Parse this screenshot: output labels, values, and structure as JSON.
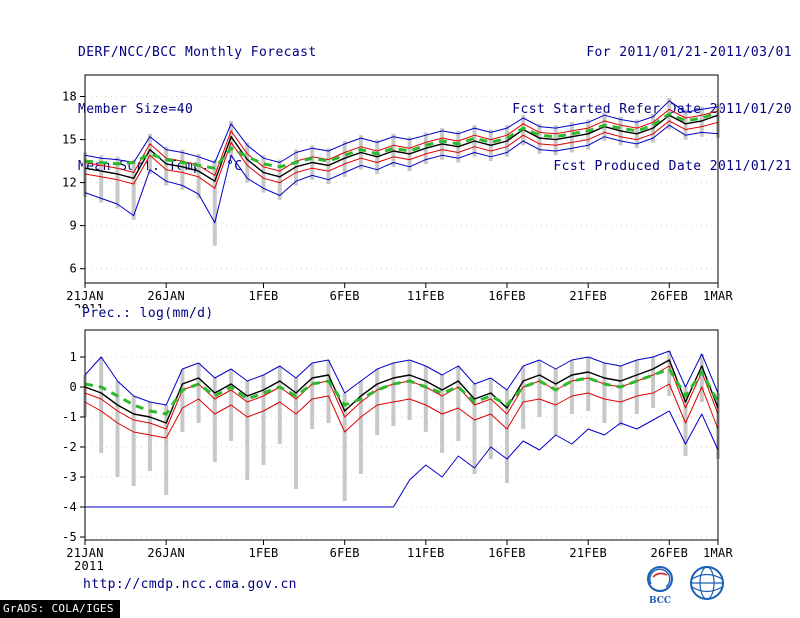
{
  "header": {
    "title": "DERF/NCC/BCC Monthly Forecast",
    "member_size": "Member Size=40",
    "for_range": "For 2011/01/21-2011/03/01",
    "fcst_started": "Fcst Started Refer Date 2011/01/20",
    "fcst_produced": "Fcst Produced Date 2011/01/21"
  },
  "footer": {
    "url": "http://cmdp.ncc.cma.gov.cn",
    "grads_credit": "GrADS: COLA/IGES",
    "bcc_caption": "BCC"
  },
  "colors": {
    "text_navy": "#000080",
    "axis_black": "#000000",
    "ensemble_bar_gray": "#c8c8c8",
    "minmax_blue": "#0000c8",
    "quartile_red": "#e00000",
    "mean_black": "#000000",
    "climatology_green": "#2eb82e"
  },
  "chart_data": [
    {
      "type": "line",
      "title": "Mean Surf. Temp.: °C",
      "xlabel": "",
      "ylabel": "°C",
      "x_tick_labels": [
        "21JAN",
        "26JAN",
        "1FEB",
        "6FEB",
        "11FEB",
        "16FEB",
        "21FEB",
        "26FEB",
        "1MAR"
      ],
      "x_tick_days": [
        0,
        5,
        11,
        16,
        21,
        26,
        31,
        36,
        39
      ],
      "x_sub_label": "2011",
      "n_days": 40,
      "ylim": [
        5,
        19.5
      ],
      "yticks": [
        6,
        9,
        12,
        15,
        18
      ],
      "grid": "dotted-horizontal",
      "legend": "none",
      "bars": {
        "name": "ensemble-spread",
        "color": "#c8c8c8",
        "low": [
          11.0,
          10.6,
          10.2,
          9.4,
          12.6,
          11.8,
          11.5,
          10.9,
          7.6,
          13.6,
          12.0,
          11.3,
          10.8,
          11.8,
          12.2,
          11.9,
          12.4,
          12.9,
          12.6,
          13.1,
          12.8,
          13.3,
          13.6,
          13.4,
          13.8,
          13.5,
          13.8,
          14.6,
          14.0,
          13.9,
          14.1,
          14.3,
          14.9,
          14.6,
          14.4,
          14.8,
          15.7,
          15.0,
          15.2,
          15.1
        ],
        "high": [
          14.1,
          13.9,
          13.8,
          13.6,
          15.4,
          14.5,
          14.3,
          14.0,
          13.6,
          16.3,
          14.8,
          13.9,
          13.6,
          14.3,
          14.6,
          14.4,
          14.9,
          15.3,
          15.0,
          15.4,
          15.2,
          15.5,
          15.8,
          15.6,
          16.0,
          15.7,
          16.0,
          16.7,
          16.1,
          16.0,
          16.2,
          16.4,
          16.9,
          16.6,
          16.4,
          16.8,
          17.9,
          17.1,
          17.3,
          17.5
        ]
      },
      "series": [
        {
          "name": "ensemble-max",
          "color": "#0000c8",
          "style": "solid",
          "width": 1,
          "values": [
            13.9,
            13.7,
            13.6,
            13.4,
            15.2,
            14.3,
            14.1,
            13.8,
            13.4,
            16.1,
            14.6,
            13.7,
            13.4,
            14.1,
            14.4,
            14.2,
            14.7,
            15.1,
            14.8,
            15.2,
            15.0,
            15.3,
            15.6,
            15.4,
            15.8,
            15.5,
            15.8,
            16.5,
            15.9,
            15.8,
            16.0,
            16.2,
            16.7,
            16.4,
            16.2,
            16.6,
            17.7,
            16.9,
            17.1,
            17.3
          ]
        },
        {
          "name": "ensemble-min",
          "color": "#0000c8",
          "style": "solid",
          "width": 1,
          "values": [
            11.3,
            10.9,
            10.5,
            9.7,
            12.9,
            12.1,
            11.8,
            11.2,
            9.2,
            13.9,
            12.3,
            11.6,
            11.1,
            12.1,
            12.5,
            12.2,
            12.7,
            13.2,
            12.9,
            13.4,
            13.1,
            13.6,
            13.9,
            13.7,
            14.1,
            13.8,
            14.1,
            14.9,
            14.3,
            14.2,
            14.4,
            14.6,
            15.2,
            14.9,
            14.7,
            15.1,
            16.0,
            15.3,
            15.5,
            15.4
          ]
        },
        {
          "name": "upper-quartile",
          "color": "#e00000",
          "style": "solid",
          "width": 1,
          "values": [
            13.4,
            13.2,
            13.0,
            12.7,
            14.7,
            13.7,
            13.5,
            13.2,
            12.5,
            15.6,
            14.0,
            13.1,
            12.8,
            13.5,
            13.8,
            13.6,
            14.1,
            14.5,
            14.2,
            14.6,
            14.4,
            14.8,
            15.1,
            14.9,
            15.3,
            15.0,
            15.3,
            16.1,
            15.5,
            15.4,
            15.6,
            15.8,
            16.3,
            16.0,
            15.8,
            16.2,
            17.1,
            16.5,
            16.7,
            17.0
          ]
        },
        {
          "name": "lower-quartile",
          "color": "#e00000",
          "style": "solid",
          "width": 1,
          "values": [
            12.6,
            12.4,
            12.2,
            11.9,
            13.9,
            12.9,
            12.7,
            12.4,
            11.6,
            14.8,
            13.2,
            12.3,
            12.0,
            12.7,
            13.0,
            12.8,
            13.3,
            13.7,
            13.4,
            13.8,
            13.6,
            14.0,
            14.3,
            14.1,
            14.5,
            14.2,
            14.5,
            15.3,
            14.7,
            14.6,
            14.8,
            15.0,
            15.5,
            15.2,
            15.0,
            15.4,
            16.3,
            15.7,
            15.9,
            16.2
          ]
        },
        {
          "name": "ensemble-mean",
          "color": "#000000",
          "style": "solid",
          "width": 1.4,
          "values": [
            13.0,
            12.8,
            12.6,
            12.3,
            14.3,
            13.3,
            13.1,
            12.8,
            12.1,
            15.2,
            13.6,
            12.7,
            12.4,
            13.1,
            13.4,
            13.2,
            13.7,
            14.1,
            13.8,
            14.2,
            14.0,
            14.4,
            14.7,
            14.5,
            14.9,
            14.6,
            14.9,
            15.7,
            15.1,
            15.0,
            15.2,
            15.4,
            15.9,
            15.6,
            15.4,
            15.8,
            16.7,
            16.1,
            16.3,
            16.7
          ]
        },
        {
          "name": "climatology",
          "color": "#2eb82e",
          "style": "dashed",
          "width": 3,
          "values": [
            13.5,
            13.4,
            13.3,
            13.4,
            14.0,
            13.6,
            13.4,
            13.2,
            13.0,
            14.4,
            13.8,
            13.3,
            13.1,
            13.4,
            13.7,
            13.5,
            13.9,
            14.3,
            14.0,
            14.4,
            14.2,
            14.6,
            14.9,
            14.7,
            15.1,
            14.8,
            15.1,
            15.8,
            15.3,
            15.2,
            15.4,
            15.6,
            16.0,
            15.8,
            15.6,
            16.0,
            16.8,
            16.3,
            16.5,
            16.9
          ]
        }
      ]
    },
    {
      "type": "line",
      "title": "Prec.: log(mm/d)",
      "xlabel": "",
      "ylabel": "log(mm/d)",
      "x_tick_labels": [
        "21JAN",
        "26JAN",
        "1FEB",
        "6FEB",
        "11FEB",
        "16FEB",
        "21FEB",
        "26FEB",
        "1MAR"
      ],
      "x_tick_days": [
        0,
        5,
        11,
        16,
        21,
        26,
        31,
        36,
        39
      ],
      "x_sub_label": "2011",
      "n_days": 40,
      "ylim": [
        -5.1,
        1.9
      ],
      "yticks": [
        1,
        0,
        -1,
        -2,
        -3,
        -4,
        -5
      ],
      "grid": "dotted-horizontal",
      "legend": "none",
      "bars": {
        "name": "ensemble-spread",
        "color": "#c8c8c8",
        "low": [
          -1.0,
          -2.2,
          -3.0,
          -3.3,
          -2.8,
          -3.6,
          -1.5,
          -1.2,
          -2.5,
          -1.8,
          -3.1,
          -2.6,
          -1.9,
          -3.4,
          -1.4,
          -1.2,
          -3.8,
          -2.9,
          -1.6,
          -1.3,
          -1.1,
          -1.5,
          -2.2,
          -1.8,
          -2.9,
          -2.4,
          -3.2,
          -1.4,
          -1.0,
          -1.6,
          -0.9,
          -0.8,
          -1.2,
          -1.3,
          -0.9,
          -0.7,
          -0.3,
          -2.3,
          -0.5,
          -2.4
        ],
        "high": [
          0.4,
          1.0,
          0.2,
          -0.3,
          -0.5,
          -0.6,
          0.6,
          0.8,
          0.3,
          0.6,
          0.2,
          0.4,
          0.7,
          0.3,
          0.8,
          0.9,
          -0.2,
          0.2,
          0.6,
          0.8,
          0.9,
          0.7,
          0.4,
          0.7,
          0.1,
          0.3,
          -0.1,
          0.7,
          0.9,
          0.6,
          0.9,
          1.0,
          0.8,
          0.7,
          0.9,
          1.0,
          1.2,
          0.0,
          1.1,
          -0.2
        ]
      },
      "series": [
        {
          "name": "ensemble-max",
          "color": "#0000c8",
          "style": "solid",
          "width": 1,
          "values": [
            0.4,
            1.0,
            0.2,
            -0.3,
            -0.5,
            -0.6,
            0.6,
            0.8,
            0.3,
            0.6,
            0.2,
            0.4,
            0.7,
            0.3,
            0.8,
            0.9,
            -0.2,
            0.2,
            0.6,
            0.8,
            0.9,
            0.7,
            0.4,
            0.7,
            0.1,
            0.3,
            -0.1,
            0.7,
            0.9,
            0.6,
            0.9,
            1.0,
            0.8,
            0.7,
            0.9,
            1.0,
            1.2,
            0.0,
            1.1,
            -0.2
          ]
        },
        {
          "name": "ensemble-min",
          "color": "#0000c8",
          "style": "solid",
          "width": 1,
          "values": [
            -4.0,
            -4.0,
            -4.0,
            -4.0,
            -4.0,
            -4.0,
            -4.0,
            -4.0,
            -4.0,
            -4.0,
            -4.0,
            -4.0,
            -4.0,
            -4.0,
            -4.0,
            -4.0,
            -4.0,
            -4.0,
            -4.0,
            -4.0,
            -3.1,
            -2.6,
            -3.0,
            -2.3,
            -2.7,
            -2.0,
            -2.4,
            -1.8,
            -2.1,
            -1.6,
            -1.9,
            -1.4,
            -1.6,
            -1.2,
            -1.4,
            -1.1,
            -0.8,
            -1.9,
            -0.9,
            -2.1
          ]
        },
        {
          "name": "upper-quartile",
          "color": "#e00000",
          "style": "solid",
          "width": 1,
          "values": [
            -0.2,
            -0.4,
            -0.8,
            -1.1,
            -1.2,
            -1.4,
            -0.1,
            0.1,
            -0.4,
            -0.1,
            -0.5,
            -0.3,
            0.0,
            -0.4,
            0.1,
            0.2,
            -1.0,
            -0.5,
            -0.1,
            0.1,
            0.2,
            0.0,
            -0.3,
            0.0,
            -0.6,
            -0.4,
            -0.9,
            0.0,
            0.2,
            -0.1,
            0.2,
            0.3,
            0.1,
            0.0,
            0.2,
            0.4,
            0.7,
            -0.7,
            0.5,
            -0.9
          ]
        },
        {
          "name": "lower-quartile",
          "color": "#e00000",
          "style": "solid",
          "width": 1,
          "values": [
            -0.5,
            -0.8,
            -1.2,
            -1.5,
            -1.6,
            -1.7,
            -0.7,
            -0.4,
            -0.9,
            -0.6,
            -1.0,
            -0.8,
            -0.5,
            -0.9,
            -0.4,
            -0.3,
            -1.5,
            -1.0,
            -0.6,
            -0.5,
            -0.4,
            -0.6,
            -0.9,
            -0.7,
            -1.1,
            -0.9,
            -1.4,
            -0.5,
            -0.4,
            -0.6,
            -0.3,
            -0.2,
            -0.4,
            -0.5,
            -0.3,
            -0.2,
            0.1,
            -1.2,
            0.0,
            -1.4
          ]
        },
        {
          "name": "ensemble-mean",
          "color": "#000000",
          "style": "solid",
          "width": 1.4,
          "values": [
            0.0,
            -0.2,
            -0.6,
            -0.9,
            -1.0,
            -1.2,
            0.1,
            0.3,
            -0.2,
            0.1,
            -0.3,
            -0.1,
            0.2,
            -0.2,
            0.3,
            0.4,
            -0.8,
            -0.3,
            0.1,
            0.3,
            0.4,
            0.2,
            -0.1,
            0.2,
            -0.4,
            -0.2,
            -0.7,
            0.2,
            0.4,
            0.1,
            0.4,
            0.5,
            0.3,
            0.2,
            0.4,
            0.6,
            0.9,
            -0.5,
            0.7,
            -0.7
          ]
        },
        {
          "name": "climatology",
          "color": "#2eb82e",
          "style": "dashed",
          "width": 3,
          "values": [
            0.1,
            0.0,
            -0.3,
            -0.6,
            -0.8,
            -0.9,
            -0.1,
            0.1,
            -0.3,
            0.0,
            -0.4,
            -0.2,
            0.0,
            -0.3,
            0.1,
            0.2,
            -0.6,
            -0.4,
            -0.1,
            0.1,
            0.2,
            0.0,
            -0.2,
            0.0,
            -0.5,
            -0.3,
            -0.6,
            0.0,
            0.2,
            -0.1,
            0.2,
            0.3,
            0.1,
            0.0,
            0.2,
            0.4,
            0.6,
            -0.3,
            0.5,
            -0.5
          ]
        }
      ]
    }
  ]
}
